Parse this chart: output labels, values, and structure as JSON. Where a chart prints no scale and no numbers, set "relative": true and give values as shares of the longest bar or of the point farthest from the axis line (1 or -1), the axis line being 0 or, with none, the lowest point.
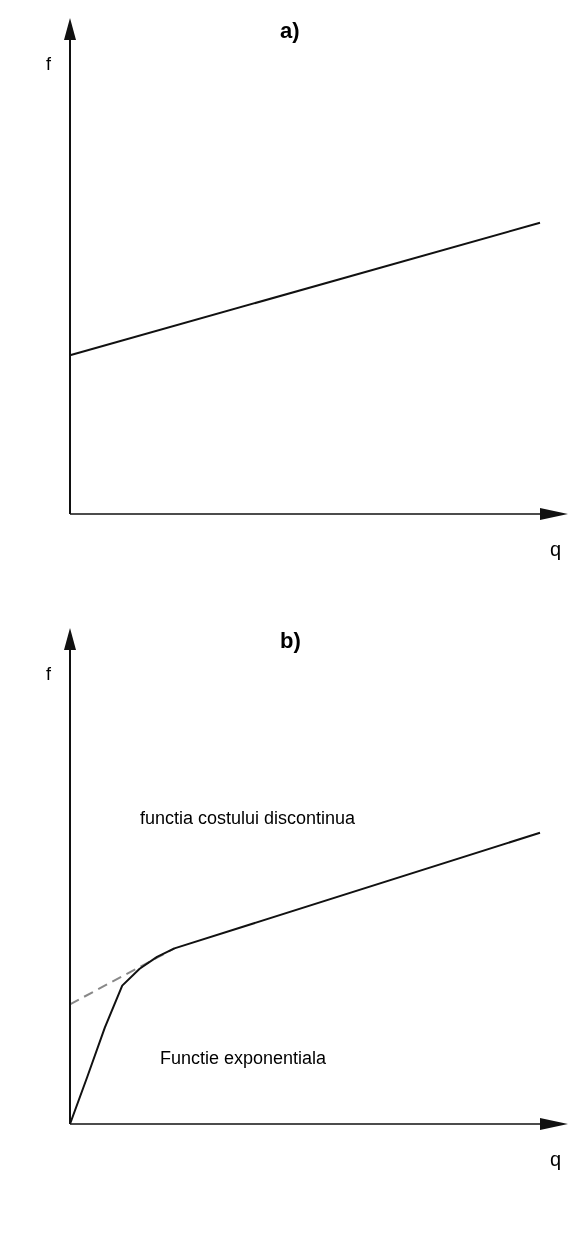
{
  "chart_data": [
    {
      "type": "line",
      "title": "a)",
      "xlabel": "q",
      "ylabel": "f",
      "relative": true,
      "legend": false,
      "marker": "none",
      "categories": [
        null,
        null,
        null,
        null,
        null,
        null,
        null,
        null,
        null,
        null,
        null,
        null,
        null,
        null,
        null,
        null,
        null,
        null,
        null,
        null,
        null,
        null,
        null,
        null,
        null,
        null,
        null,
        null
      ],
      "series": [
        {
          "color": "#111111",
          "line_style": "solid",
          "values": [
            0.545,
            null,
            null,
            null,
            null,
            null,
            null,
            null,
            null,
            null,
            null,
            null,
            null,
            null,
            null,
            null,
            null,
            null,
            null,
            null,
            null,
            null,
            null,
            null,
            null,
            null,
            null,
            1
          ]
        }
      ]
    },
    {
      "type": "line",
      "title": "b)",
      "xlabel": "q",
      "ylabel": "f",
      "relative": true,
      "legend": false,
      "marker": "none",
      "annotations": [
        "functia costului discontinua",
        "Functie exponentiala"
      ],
      "categories": [
        null,
        null,
        null,
        null,
        null,
        null,
        null,
        null,
        null,
        null,
        null,
        null,
        null,
        null,
        null,
        null,
        null,
        null,
        null,
        null,
        null,
        null,
        null,
        null,
        null,
        null,
        null,
        null
      ],
      "series": [
        {
          "color": "#888888",
          "line_style": "dashed",
          "values": [
            0.411,
            null,
            null,
            null,
            null,
            null,
            0.603,
            null,
            null,
            null,
            null,
            null,
            null,
            null,
            null,
            null,
            null,
            null,
            null,
            null,
            null,
            null,
            null,
            null,
            null,
            null,
            null,
            null
          ]
        },
        {
          "color": "#111111",
          "line_style": "solid",
          "values": [
            0,
            0.163,
            0.331,
            0.475,
            0.533,
            0.574,
            0.603,
            null,
            null,
            null,
            null,
            null,
            null,
            null,
            null,
            null,
            null,
            null,
            null,
            null,
            null,
            null,
            null,
            null,
            null,
            null,
            null,
            1
          ]
        }
      ]
    }
  ]
}
